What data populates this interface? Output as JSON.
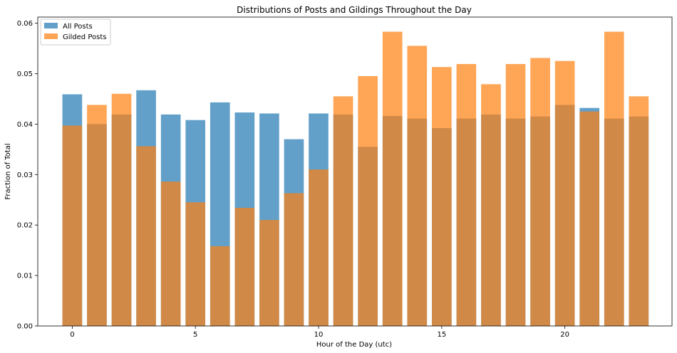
{
  "chart_data": {
    "type": "bar",
    "title": "Distributions of Posts and Gildings Throughout the Day",
    "xlabel": "Hour of the Day (utc)",
    "ylabel": "Fraction of Total",
    "x": [
      0,
      1,
      2,
      3,
      4,
      5,
      6,
      7,
      8,
      9,
      10,
      11,
      12,
      13,
      14,
      15,
      16,
      17,
      18,
      19,
      20,
      21,
      22,
      23
    ],
    "xticks": [
      0,
      5,
      10,
      15,
      20
    ],
    "xtick_labels": [
      "0",
      "5",
      "10",
      "15",
      "20"
    ],
    "xlim": [
      -1.4,
      24.35
    ],
    "ylim": [
      0,
      0.0612
    ],
    "yticks": [
      0,
      0.01,
      0.02,
      0.03,
      0.04,
      0.05,
      0.06
    ],
    "ytick_labels": [
      "0.00",
      "0.01",
      "0.02",
      "0.03",
      "0.04",
      "0.05",
      "0.06"
    ],
    "grid": false,
    "legend_position": "top-left",
    "series": [
      {
        "name": "All Posts",
        "color": "#1f77b4",
        "alpha": 0.7,
        "values": [
          0.0459,
          0.04,
          0.0419,
          0.0467,
          0.0419,
          0.0408,
          0.0443,
          0.0423,
          0.0421,
          0.037,
          0.0421,
          0.0419,
          0.0355,
          0.0416,
          0.0411,
          0.0392,
          0.0411,
          0.0419,
          0.0411,
          0.0415,
          0.0438,
          0.0432,
          0.0411,
          0.0415
        ]
      },
      {
        "name": "Gilded Posts",
        "color": "#ff7f0e",
        "color_rendered": "#deae3b",
        "alpha": 0.7,
        "values": [
          0.0397,
          0.0438,
          0.046,
          0.0356,
          0.0286,
          0.0245,
          0.0158,
          0.0234,
          0.021,
          0.0263,
          0.031,
          0.0455,
          0.0495,
          0.0583,
          0.0555,
          0.0513,
          0.0519,
          0.0479,
          0.0519,
          0.0531,
          0.0525,
          0.0425,
          0.0583,
          0.0455
        ]
      }
    ]
  }
}
